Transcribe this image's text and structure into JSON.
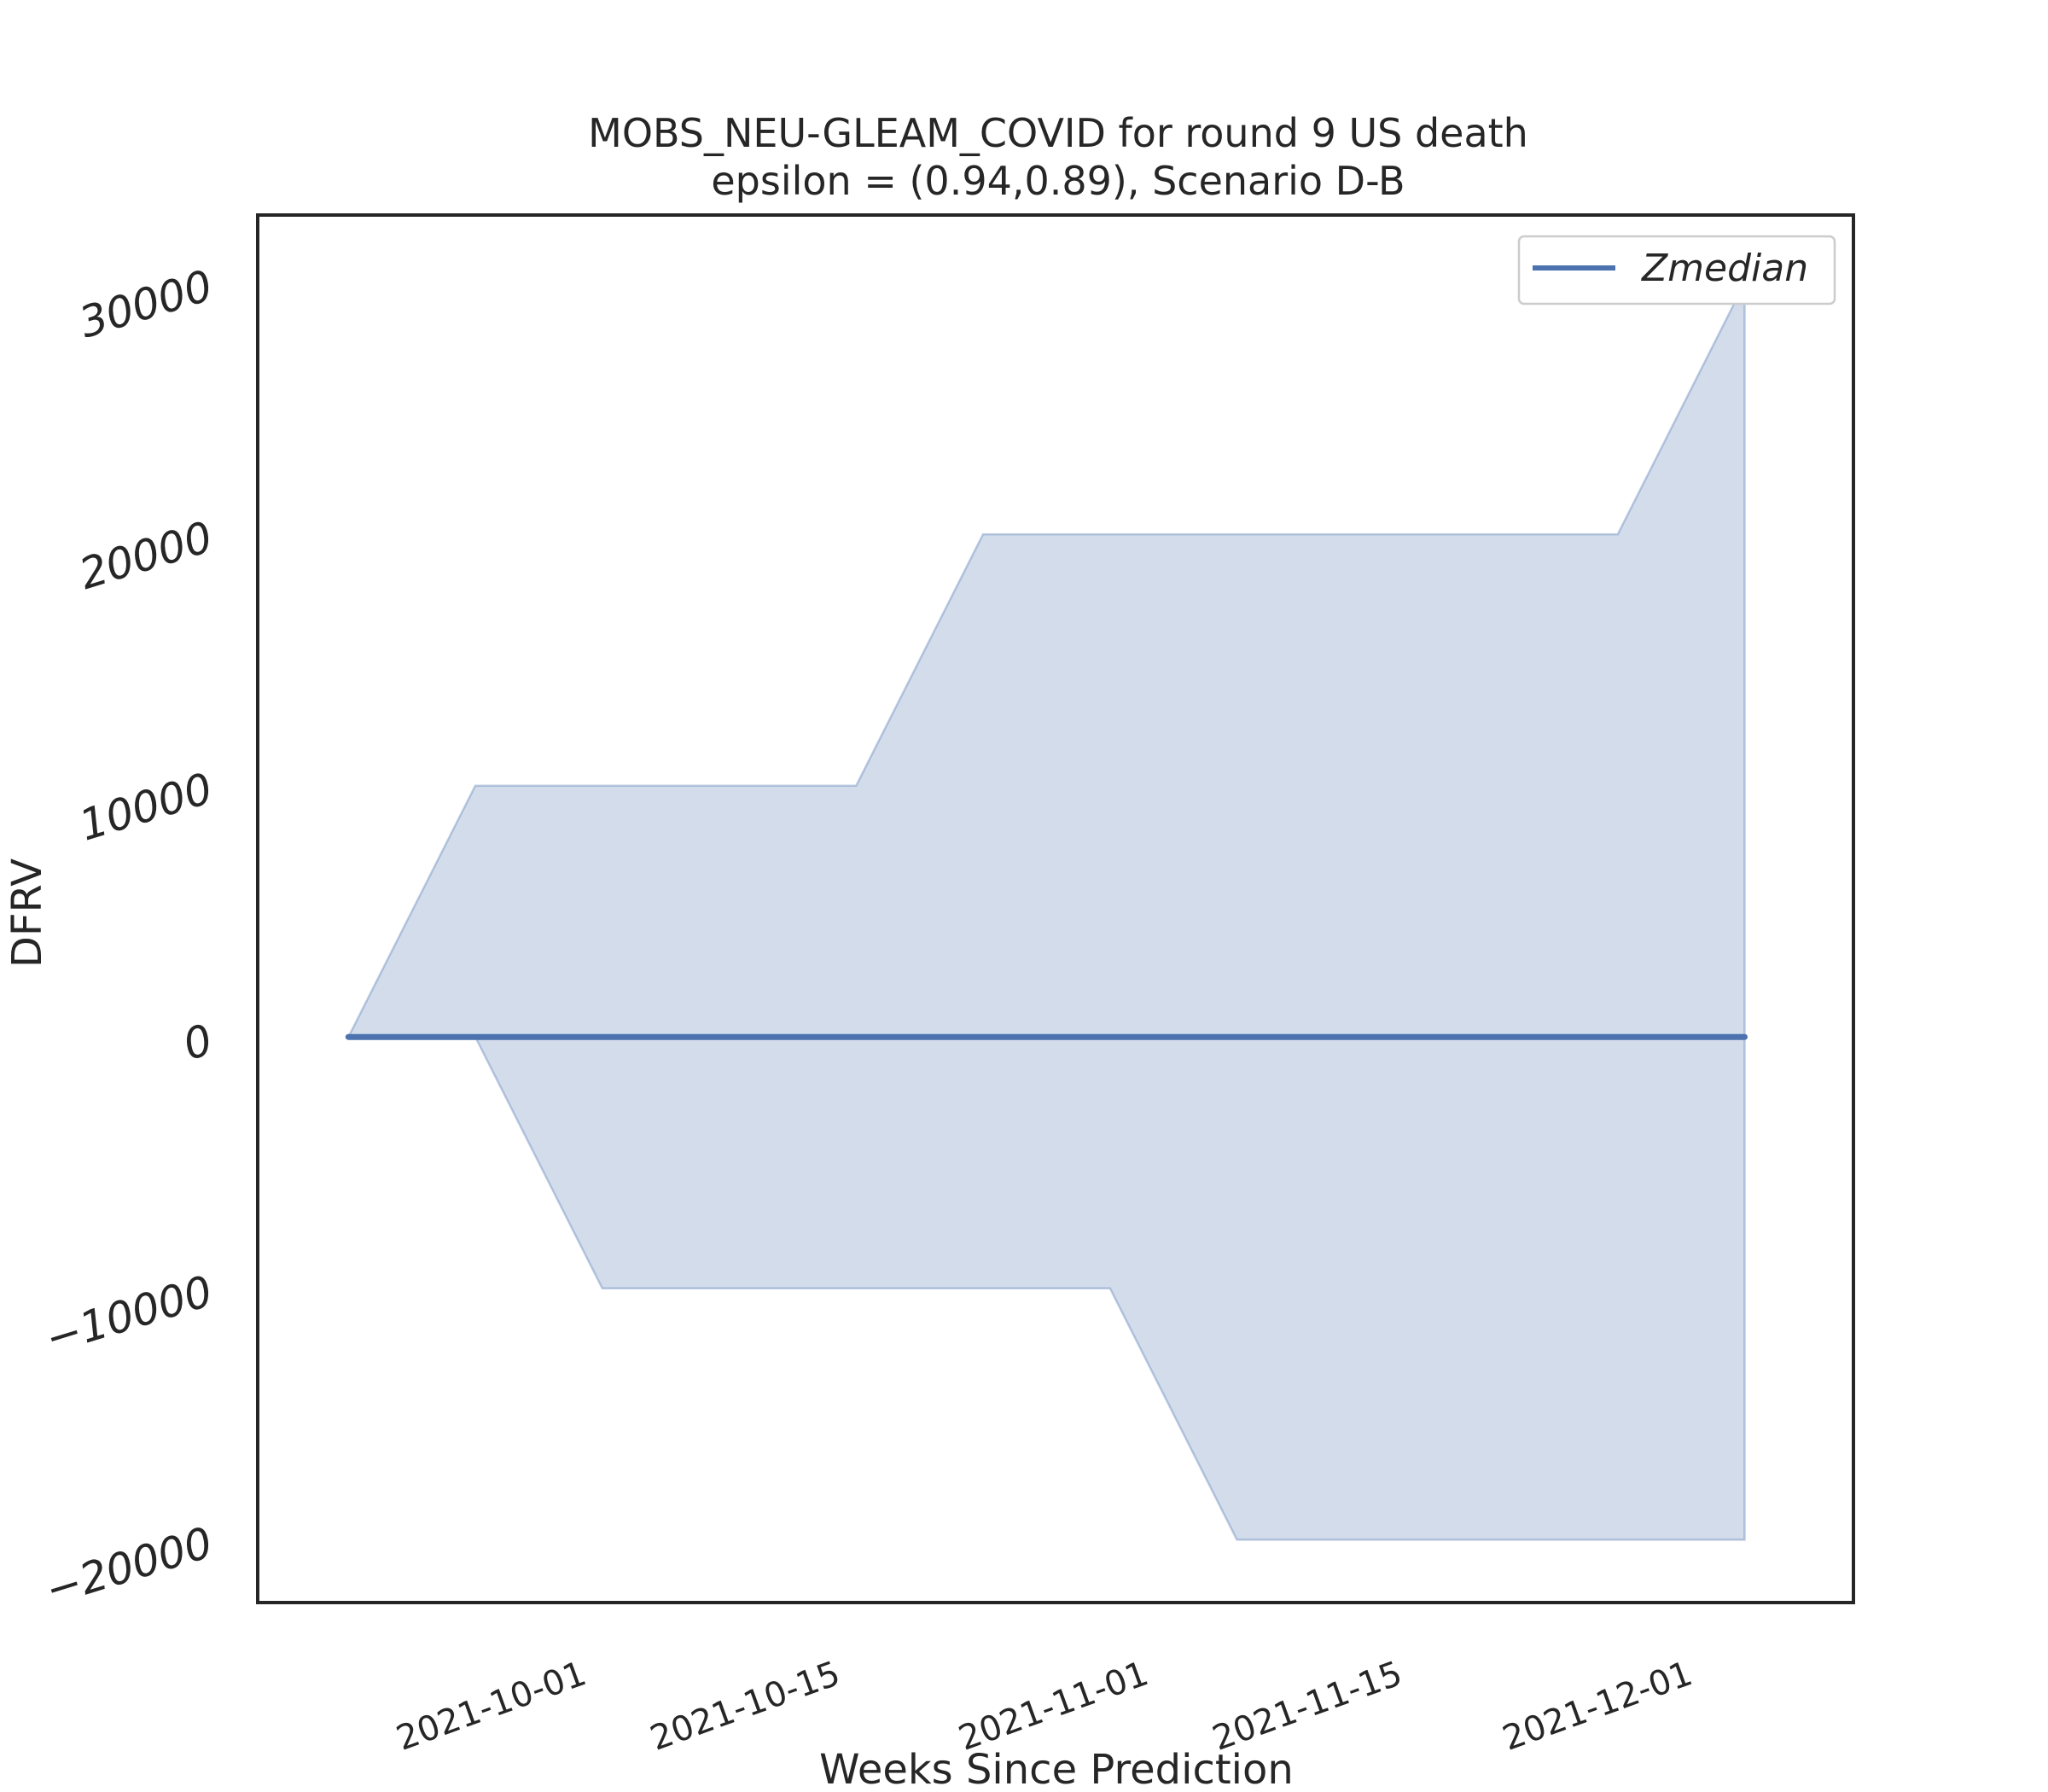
{
  "chart_data": {
    "type": "area",
    "title": "MOBS_NEU-GLEAM_COVID for round 9 US  death",
    "subtitle": "epsilon = (0.94,0.89), Scenario D-B",
    "xlabel": "Weeks Since Prediction",
    "ylabel": "DFRV",
    "x": [
      "2021-09-18",
      "2021-09-25",
      "2021-10-02",
      "2021-10-09",
      "2021-10-16",
      "2021-10-23",
      "2021-10-30",
      "2021-11-06",
      "2021-11-13",
      "2021-11-20",
      "2021-11-27",
      "2021-12-04"
    ],
    "series": [
      {
        "name": "Zmedian",
        "type": "line",
        "color": "#4c72b0",
        "values": [
          0,
          0,
          0,
          0,
          0,
          0,
          0,
          0,
          0,
          0,
          0,
          0
        ]
      }
    ],
    "band": {
      "color": "#4c72b0",
      "opacity": 0.25,
      "upper": [
        0,
        10000,
        10000,
        10000,
        10000,
        20000,
        20000,
        20000,
        20000,
        20000,
        20000,
        30000
      ],
      "lower": [
        0,
        0,
        -10000,
        -10000,
        -10000,
        -10000,
        -10000,
        -20000,
        -20000,
        -20000,
        -20000,
        -20000
      ]
    },
    "xticks": [
      "2021-10-01",
      "2021-10-15",
      "2021-11-01",
      "2021-11-15",
      "2021-12-01"
    ],
    "yticks": [
      -20000,
      -10000,
      0,
      10000,
      20000,
      30000
    ],
    "ytick_labels": [
      "−20000",
      "−10000",
      "0",
      "10000",
      "20000",
      "30000"
    ],
    "ylim": [
      -22500,
      32700
    ],
    "xlim": [
      "2021-09-13",
      "2021-12-10"
    ],
    "grid": false,
    "legend_position": "top-right"
  }
}
